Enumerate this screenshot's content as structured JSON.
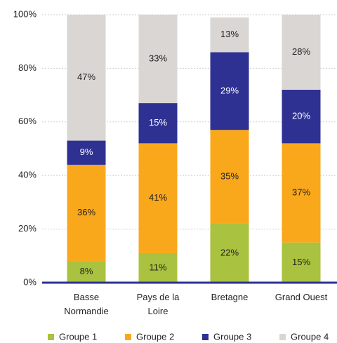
{
  "chart_data": {
    "type": "stacked_bar",
    "categories": [
      "Basse Normandie",
      "Pays de la Loire",
      "Bretagne",
      "Grand Ouest"
    ],
    "series": [
      {
        "name": "Groupe 1",
        "color": "#a9c23f",
        "values": [
          8,
          11,
          22,
          15
        ],
        "value_labels": [
          "8%",
          "11%",
          "22%",
          "15%"
        ]
      },
      {
        "name": "Groupe 2",
        "color": "#f9a81b",
        "values": [
          36,
          41,
          35,
          37
        ],
        "value_labels": [
          "36%",
          "41%",
          "35%",
          "37%"
        ]
      },
      {
        "name": "Groupe 3",
        "color": "#2e3192",
        "values": [
          9,
          15,
          29,
          20
        ],
        "value_labels": [
          "9%",
          "15%",
          "29%",
          "20%"
        ]
      },
      {
        "name": "Groupe 4",
        "color": "#d9d6d3",
        "values": [
          47,
          33,
          13,
          28
        ],
        "value_labels": [
          "47%",
          "33%",
          "13%",
          "28%"
        ]
      }
    ],
    "ylim": [
      0,
      100
    ],
    "yticks": [
      {
        "value": 0,
        "label": "0%"
      },
      {
        "value": 20,
        "label": "20%"
      },
      {
        "value": 40,
        "label": "40%"
      },
      {
        "value": 60,
        "label": "60%"
      },
      {
        "value": 80,
        "label": "80%"
      },
      {
        "value": 100,
        "label": "100%"
      }
    ],
    "grid": true,
    "legend": "bottom"
  }
}
